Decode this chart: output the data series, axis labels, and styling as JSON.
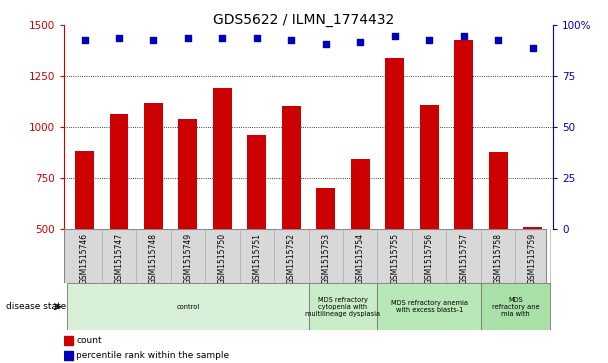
{
  "title": "GDS5622 / ILMN_1774432",
  "samples": [
    "GSM1515746",
    "GSM1515747",
    "GSM1515748",
    "GSM1515749",
    "GSM1515750",
    "GSM1515751",
    "GSM1515752",
    "GSM1515753",
    "GSM1515754",
    "GSM1515755",
    "GSM1515756",
    "GSM1515757",
    "GSM1515758",
    "GSM1515759"
  ],
  "counts": [
    880,
    1065,
    1120,
    1040,
    1190,
    960,
    1105,
    700,
    845,
    1340,
    1110,
    1430,
    875,
    510
  ],
  "percentiles": [
    93,
    94,
    93,
    94,
    94,
    94,
    93,
    91,
    92,
    95,
    93,
    95,
    93,
    89
  ],
  "ylim_left": [
    500,
    1500
  ],
  "ylim_right": [
    0,
    100
  ],
  "yticks_left": [
    500,
    750,
    1000,
    1250,
    1500
  ],
  "yticks_right": [
    0,
    25,
    50,
    75,
    100
  ],
  "disease_groups": [
    {
      "label": "control",
      "start": 0,
      "end": 7,
      "color": "#d8f0d8"
    },
    {
      "label": "MDS refractory\ncytopenia with\nmultilineage dysplasia",
      "start": 7,
      "end": 9,
      "color": "#c8ecc8"
    },
    {
      "label": "MDS refractory anemia\nwith excess blasts-1",
      "start": 9,
      "end": 12,
      "color": "#b8e8b8"
    },
    {
      "label": "MDS\nrefractory ane\nmia with",
      "start": 12,
      "end": 14,
      "color": "#a8e0a8"
    }
  ],
  "bar_color": "#cc0000",
  "dot_color": "#0000bb",
  "bar_width": 0.55,
  "label_area_color": "#d8d8d8",
  "right_axis_color": "#0000bb",
  "left_axis_color": "#cc0000",
  "grid_dotted_at": [
    750,
    1000,
    1250
  ]
}
